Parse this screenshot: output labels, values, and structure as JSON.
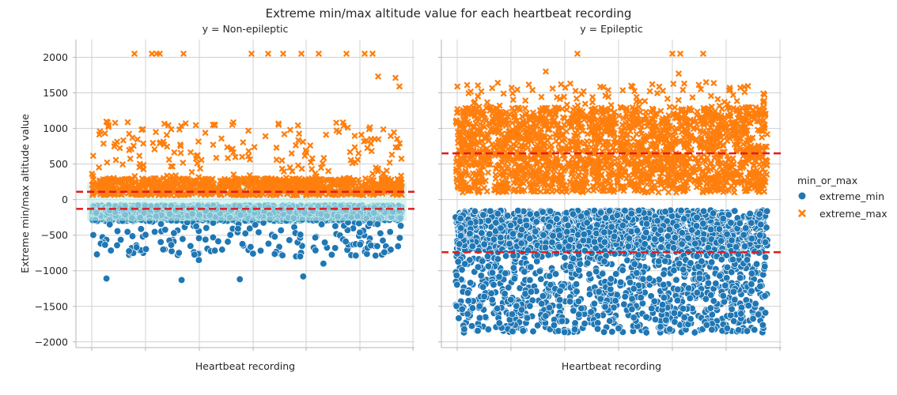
{
  "figure": {
    "title": "Extreme min/max altitude value for each heartbeat recording"
  },
  "chart_data": [
    {
      "type": "scatter",
      "title": "y = Non-epileptic",
      "xlabel": "Heartbeat recording",
      "ylabel": "Extreme min/max altitude value",
      "ylim": [
        -2080,
        2250
      ],
      "yticks": [
        2000,
        1500,
        1000,
        500,
        0,
        -500,
        -1000,
        -1500,
        -2000
      ],
      "grid": true,
      "reference_lines": [
        110,
        -130
      ],
      "series": [
        {
          "name": "extreme_min",
          "marker": "circle",
          "distribution": {
            "dense_range": [
              -300,
              -80
            ],
            "sparse_range": [
              -800,
              -300
            ],
            "outliers": [
              -1080,
              -1110,
              -1120,
              -1130,
              -900,
              -850
            ]
          }
        },
        {
          "name": "extreme_max",
          "marker": "x",
          "distribution": {
            "dense_range": [
              60,
              300
            ],
            "sparse_range": [
              300,
              1100
            ],
            "outliers": [
              2050,
              2050,
              2050,
              2050,
              2050,
              2050,
              2050,
              2050,
              2050,
              2050,
              2050,
              2050,
              2050,
              1730,
              1710,
              1590
            ]
          }
        }
      ]
    },
    {
      "type": "scatter",
      "title": "y = Epileptic",
      "xlabel": "Heartbeat recording",
      "ylabel": "",
      "ylim": [
        -2080,
        2250
      ],
      "grid": true,
      "reference_lines": [
        650,
        -740
      ],
      "series": [
        {
          "name": "extreme_min",
          "marker": "circle",
          "distribution": {
            "dense_range": [
              -750,
              -150
            ],
            "sparse_range": [
              -1870,
              -750
            ]
          }
        },
        {
          "name": "extreme_max",
          "marker": "x",
          "distribution": {
            "dense_range": [
              100,
              1300
            ],
            "sparse_range": [
              1300,
              1650
            ],
            "outliers": [
              2050,
              2050,
              2050,
              2050,
              1800,
              1770,
              1630
            ]
          }
        }
      ]
    }
  ],
  "legend": {
    "title": "min_or_max",
    "placement": "right",
    "entries": [
      {
        "label": "extreme_min",
        "marker": "circle",
        "color": "#1f77b4"
      },
      {
        "label": "extreme_max",
        "marker": "x",
        "color": "#ff7f0e"
      }
    ]
  },
  "colors": {
    "min": "#1f77b4",
    "max": "#ff7f0e",
    "reference": "#e31a1c",
    "grid": "#d0d0d0",
    "axis": "#b5b5b5"
  }
}
